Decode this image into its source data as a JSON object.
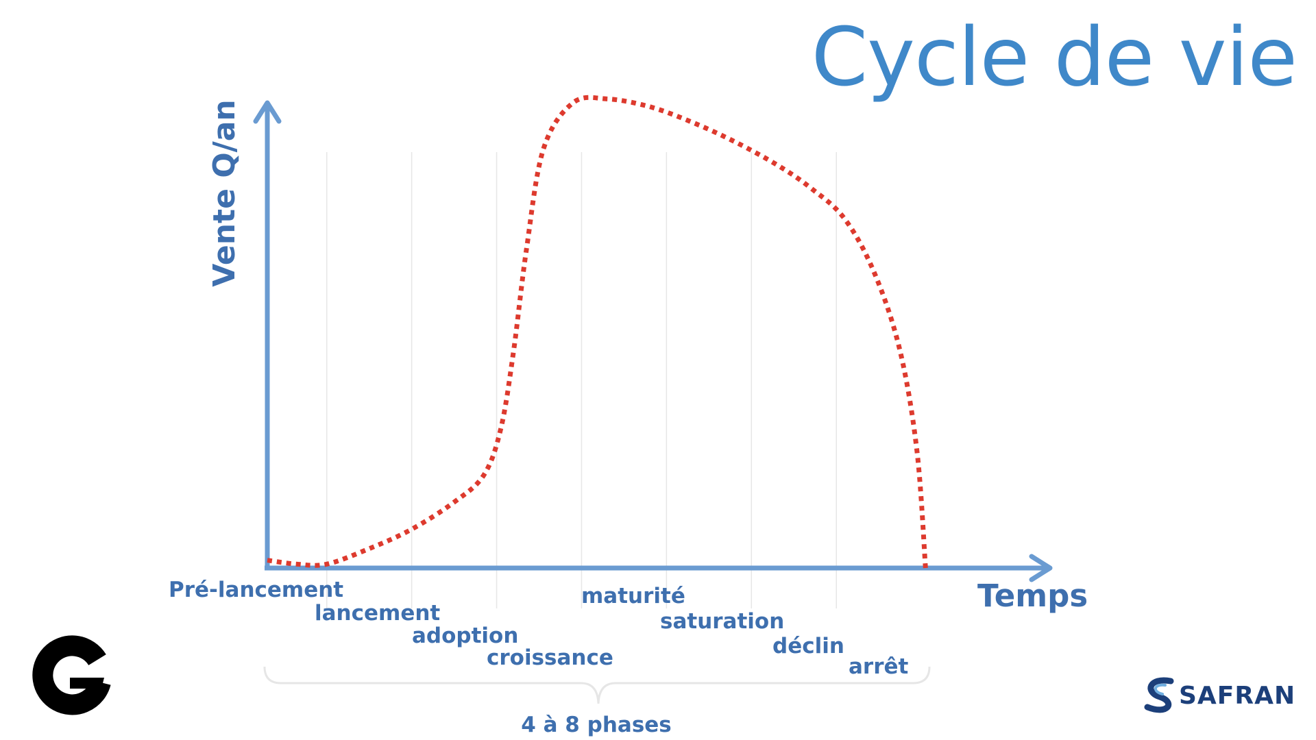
{
  "page": {
    "title": "Cycle de vie"
  },
  "colors": {
    "title": "#3f88c9",
    "axis": "#6a9bd1",
    "text": "#3e6fae",
    "curve": "#dd3a2e",
    "grid": "#e6e6e6",
    "brace": "#e6e6e6"
  },
  "chart_data": {
    "type": "line",
    "title": "Cycle de vie",
    "ylabel": "Vente Q/an",
    "xlabel": "Temps",
    "x_domain": [
      0,
      9.2
    ],
    "y_domain": [
      0,
      1.2
    ],
    "grid": "vertical",
    "phases": [
      "Pré-lancement",
      "lancement",
      "adoption",
      "croissance",
      "maturité",
      "saturation",
      "déclin",
      "arrêt"
    ],
    "phase_boundaries": [
      0.7,
      1.7,
      2.7,
      3.7,
      4.7,
      5.7,
      6.7
    ],
    "series": [
      {
        "line_style": "dotted",
        "points": [
          [
            0,
            0.02
          ],
          [
            0.35,
            0.01
          ],
          [
            0.7,
            0.01
          ],
          [
            1.2,
            0.05
          ],
          [
            1.7,
            0.1
          ],
          [
            2.2,
            0.17
          ],
          [
            2.55,
            0.24
          ],
          [
            2.75,
            0.36
          ],
          [
            2.9,
            0.56
          ],
          [
            3.05,
            0.82
          ],
          [
            3.25,
            1.08
          ],
          [
            3.6,
            1.2
          ],
          [
            4.0,
            1.21
          ],
          [
            4.5,
            1.19
          ],
          [
            5.0,
            1.15
          ],
          [
            5.5,
            1.1
          ],
          [
            6.0,
            1.04
          ],
          [
            6.4,
            0.98
          ],
          [
            6.8,
            0.9
          ],
          [
            7.15,
            0.76
          ],
          [
            7.45,
            0.56
          ],
          [
            7.65,
            0.3
          ],
          [
            7.75,
            0.0
          ]
        ]
      }
    ],
    "brace_label": "4 à 8 phases"
  },
  "logos": {
    "left": "g-logo",
    "right": "SAFRAN"
  }
}
